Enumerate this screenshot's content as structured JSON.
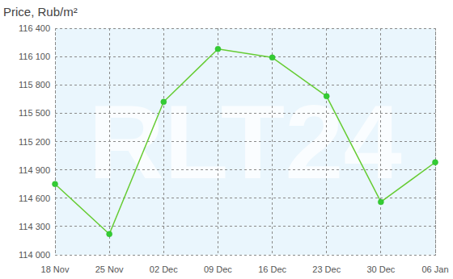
{
  "chart_data": {
    "type": "line",
    "title": "Price, Rub/m²",
    "annotations": [
      "RLT24"
    ],
    "categories": [
      "18 Nov",
      "25 Nov",
      "02 Dec",
      "09 Dec",
      "16 Dec",
      "23 Dec",
      "30 Dec",
      "06 Jan"
    ],
    "values": [
      114750,
      114220,
      115620,
      116180,
      116090,
      115680,
      114560,
      114980
    ],
    "color": "#66cc33",
    "marker": "circle",
    "ylim": [
      114000,
      116400
    ],
    "yticks": [
      {
        "value": 114000,
        "label": "114 000"
      },
      {
        "value": 114300,
        "label": "114 300"
      },
      {
        "value": 114600,
        "label": "114 600"
      },
      {
        "value": 114900,
        "label": "114 900"
      },
      {
        "value": 115200,
        "label": "115 200"
      },
      {
        "value": 115500,
        "label": "115 500"
      },
      {
        "value": 115800,
        "label": "115 800"
      },
      {
        "value": 116100,
        "label": "116 100"
      },
      {
        "value": 116400,
        "label": "116 400"
      }
    ],
    "grid": true
  }
}
